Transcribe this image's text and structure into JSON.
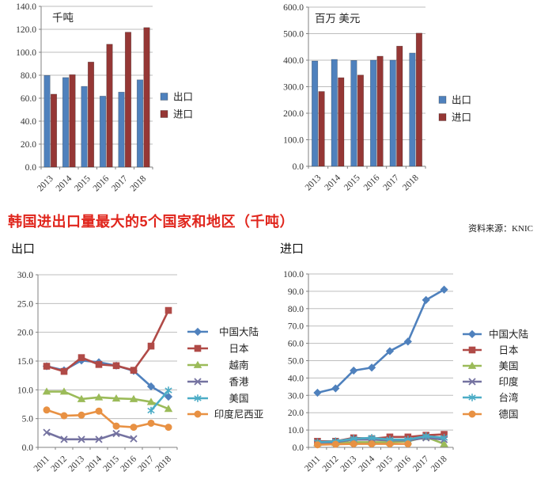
{
  "section_title": {
    "text": "韩国进出口量最大的5个国家和地区（千吨）",
    "color": "#e0251c"
  },
  "source_note": {
    "text": "资料来源：KNIC"
  },
  "panel_labels": {
    "bottom_left": "出口",
    "bottom_right": "进口"
  },
  "chart_data": [
    {
      "id": "export-import-kilotons",
      "type": "bar",
      "unit_label": "千吨",
      "categories": [
        "2013",
        "2014",
        "2015",
        "2016",
        "2017",
        "2018"
      ],
      "series": [
        {
          "name": "出口",
          "color": "#4f81bd",
          "values": [
            79.8,
            78.0,
            70.3,
            61.8,
            65.3,
            76.0
          ]
        },
        {
          "name": "进口",
          "color": "#953735",
          "values": [
            63.5,
            80.5,
            91.5,
            107.0,
            117.5,
            121.5
          ]
        }
      ],
      "ylim": [
        0,
        140
      ],
      "ystep": 20,
      "grid": true,
      "legend_position": "right"
    },
    {
      "id": "export-import-million-usd",
      "type": "bar",
      "unit_label": "百万 美元",
      "categories": [
        "2013",
        "2014",
        "2015",
        "2016",
        "2017",
        "2018"
      ],
      "series": [
        {
          "name": "出口",
          "color": "#4f81bd",
          "values": [
            397,
            403,
            399,
            400,
            400,
            427
          ]
        },
        {
          "name": "进口",
          "color": "#953735",
          "values": [
            282,
            334,
            344,
            415,
            453,
            502
          ]
        }
      ],
      "ylim": [
        0,
        600
      ],
      "ystep": 100,
      "grid": true,
      "legend_position": "right"
    },
    {
      "id": "export-top5-countries",
      "type": "line",
      "panel": "出口",
      "categories": [
        "2011",
        "2012",
        "2013",
        "2014",
        "2015",
        "2016",
        "2017",
        "2018"
      ],
      "series": [
        {
          "name": "中国大陆",
          "color": "#4f81bd",
          "marker": "diamond",
          "values": [
            14.1,
            13.4,
            15.1,
            14.8,
            14.2,
            13.3,
            10.6,
            8.8
          ]
        },
        {
          "name": "日本",
          "color": "#b04a47",
          "marker": "square",
          "values": [
            14.1,
            13.2,
            15.6,
            14.4,
            14.2,
            13.4,
            17.6,
            23.8
          ]
        },
        {
          "name": "越南",
          "color": "#9bbb59",
          "marker": "triangle",
          "values": [
            9.7,
            9.7,
            8.4,
            8.7,
            8.5,
            8.4,
            7.9,
            6.7
          ]
        },
        {
          "name": "香港",
          "color": "#7472a0",
          "marker": "x",
          "values": [
            2.6,
            1.4,
            1.4,
            1.4,
            2.4,
            1.5,
            null,
            null
          ]
        },
        {
          "name": "美国",
          "color": "#4bacc6",
          "marker": "asterisk",
          "values": [
            null,
            null,
            null,
            null,
            null,
            null,
            6.4,
            9.9
          ]
        },
        {
          "name": "印度尼西亚",
          "color": "#e89143",
          "marker": "circle",
          "values": [
            6.5,
            5.5,
            5.6,
            6.3,
            3.7,
            3.5,
            4.2,
            3.5
          ]
        }
      ],
      "ylim": [
        0,
        30
      ],
      "ystep": 5,
      "grid": true,
      "legend_position": "right"
    },
    {
      "id": "import-top5-countries",
      "type": "line",
      "panel": "进口",
      "categories": [
        "2011",
        "2012",
        "2013",
        "2014",
        "2015",
        "2016",
        "2017",
        "2018"
      ],
      "series": [
        {
          "name": "中国大陆",
          "color": "#4f81bd",
          "marker": "diamond",
          "values": [
            31.5,
            34.0,
            44.3,
            46.0,
            55.5,
            61.0,
            85.0,
            91.0
          ]
        },
        {
          "name": "日本",
          "color": "#b04a47",
          "marker": "square",
          "values": [
            3.5,
            3.5,
            5.5,
            5.0,
            6.0,
            6.0,
            7.0,
            7.5
          ]
        },
        {
          "name": "美国",
          "color": "#9bbb59",
          "marker": "triangle",
          "values": [
            2.5,
            2.5,
            3.0,
            3.0,
            3.0,
            3.5,
            6.0,
            2.0
          ]
        },
        {
          "name": "印度",
          "color": "#7472a0",
          "marker": "x",
          "values": [
            2.5,
            3.0,
            4.5,
            4.5,
            4.0,
            4.0,
            5.5,
            4.5
          ]
        },
        {
          "name": "台湾",
          "color": "#4bacc6",
          "marker": "asterisk",
          "values": [
            3.0,
            3.5,
            5.0,
            5.5,
            4.5,
            4.5,
            6.5,
            5.5
          ]
        },
        {
          "name": "德国",
          "color": "#e89143",
          "marker": "circle",
          "values": [
            1.5,
            1.8,
            2.0,
            2.0,
            2.0,
            2.0,
            null,
            null
          ]
        }
      ],
      "ylim": [
        0,
        100
      ],
      "ystep": 10,
      "grid": true,
      "legend_position": "right"
    }
  ]
}
